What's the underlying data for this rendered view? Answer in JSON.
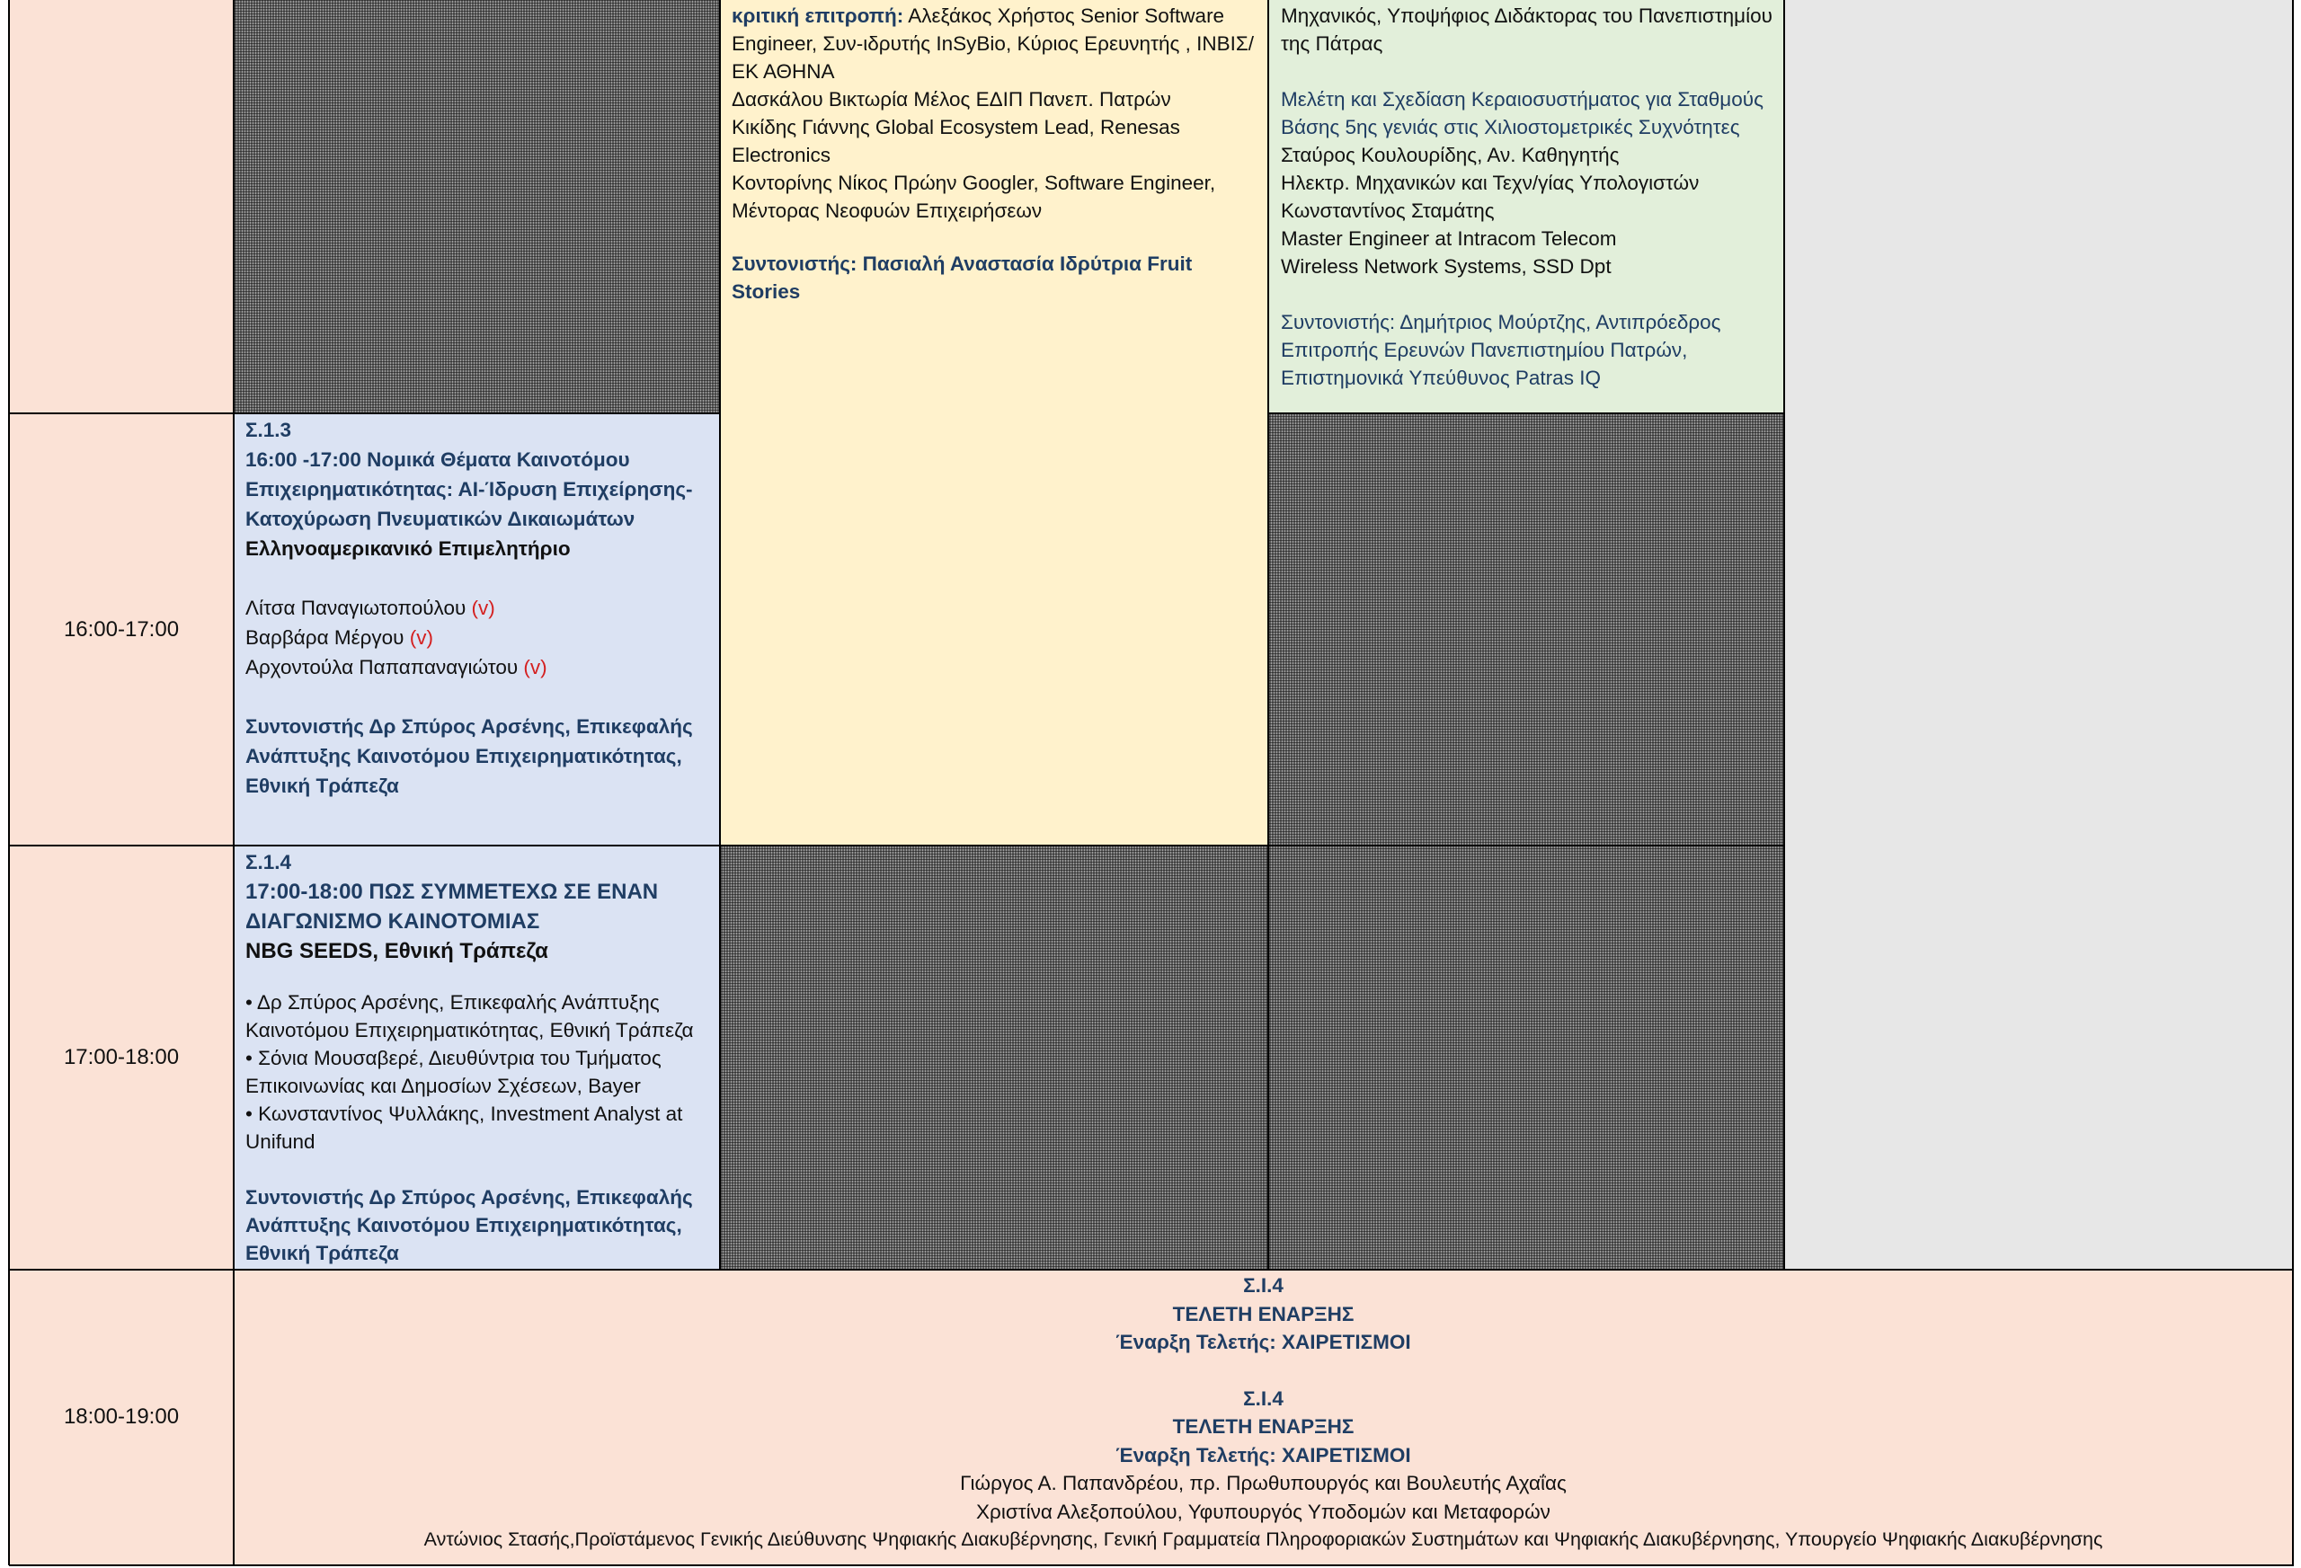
{
  "times": {
    "t1": "16:00-17:00",
    "t2": "17:00-18:00",
    "t3": "18:00-19:00"
  },
  "yellow_cell": {
    "committee_label": "κριτική επιτροπή:",
    "committee_first": " Αλεξάκος Χρήστος Senior Software Engineer, Συν-ιδρυτής InSyBio, Κύριος Ερευνητής , ΙΝΒΙΣ/ΕΚ ΑΘΗΝΑ",
    "member2": "Δασκάλου Βικτωρία Μέλος ΕΔΙΠ Πανεπ. Πατρών",
    "member3": "Κικίδης Γιάννης Global Ecosystem Lead, Renesas Electronics",
    "member4": "Κοντορίνης Νίκος Πρώην Googler, Software Engineer, Μέντορας Νεοφυών Επιχειρήσεων",
    "coordinator": "Συντονιστής: Πασιαλή Αναστασία Ιδρύτρια Fruit Stories"
  },
  "green_cell": {
    "line1": "Μηχανικός, Υποψήφιος Διδάκτορας του Πανεπιστημίου της Πάτρας",
    "talk_title": "Μελέτη και Σχεδίαση Κεραιοσυστήματος για Σταθμούς Βάσης 5ης γενιάς στις Χιλιοστομετρικές Συχνότητες",
    "speaker1": "Σταύρος Κουλουρίδης, Αν. Καθηγητής",
    "speaker1_aff": "Ηλεκτρ. Μηχανικών και Τεχν/γίας Υπολογιστών",
    "speaker2": "Κωνσταντίνος Σταμάτης",
    "speaker2_role": "Master Engineer at Intracom Telecom",
    "speaker2_aff": "Wireless Network Systems, SSD Dpt",
    "coordinator": "Συντονιστής: Δημήτριος Μούρτζης,  Αντιπρόεδρος Επιτροπής Ερευνών Πανεπιστημίου Πατρών, Επιστημονικά Υπεύθυνος Patras IQ"
  },
  "s13": {
    "code": "Σ.1.3",
    "title": "16:00 -17:00 Νομικά Θέματα Καινοτόμου Επιχειρηματικότητας: ΑΙ-Ίδρυση Επιχείρησης- Κατοχύρωση Πνευματικών Δικαιωμάτων",
    "organizer": "Ελληνοαμερικανικό Επιμελητήριο",
    "speakers": [
      {
        "name": "Λίτσα Παναγιωτοπούλου ",
        "mark": "(v)"
      },
      {
        "name": "Βαρβάρα Μέργου ",
        "mark": "(v)"
      },
      {
        "name": "Αρχοντούλα Παπαπαναγιώτου ",
        "mark": "(v)"
      }
    ],
    "coordinator": "Συντονιστής Δρ Σπύρος Αρσένης, Επικεφαλής Ανάπτυξης Καινοτόμου Επιχειρηματικότητας, Εθνική Τράπεζα"
  },
  "s14": {
    "code": "Σ.1.4",
    "title": "17:00-18:00 ΠΩΣ ΣΥΜΜΕΤΕΧΩ ΣΕ ΕΝΑΝ ΔΙΑΓΩΝΙΣΜΟ ΚΑΙΝΟΤΟΜΙΑΣ",
    "organizer": "NBG SEEDS, Εθνική Τράπεζα",
    "speakers": [
      "• Δρ Σπύρος Αρσένης, Επικεφαλής Ανάπτυξης Καινοτόμου Επιχειρηματικότητας, Εθνική Τράπεζα",
      "• Σόνια Μουσαβερέ, Διευθύντρια του Τμήματος Επικοινωνίας και Δημοσίων Σχέσεων, Bayer",
      "• Κωνσταντίνος Ψυλλάκης, Investment Analyst at Unifund"
    ],
    "coordinator": "Συντονιστής Δρ Σπύρος Αρσένης, Επικεφαλής Ανάπτυξης Καινοτόμου Επιχειρηματικότητας, Εθνική Τράπεζα"
  },
  "ceremony": {
    "code1": "Σ.Ι.4",
    "title1": "ΤΕΛΕΤΗ ΕΝΑΡΞΗΣ",
    "sub1": "Έναρξη Τελετής: ΧΑΙΡΕΤΙΣΜΟΙ",
    "code2": "Σ.Ι.4",
    "title2": "ΤΕΛΕΤΗ ΕΝΑΡΞΗΣ",
    "sub2": "Έναρξη Τελετής: ΧΑΙΡΕΤΙΣΜΟΙ",
    "guests": [
      "Γιώργος Α. Παπανδρέου, πρ. Πρωθυπουργός και Βουλευτής Αχαΐας",
      "Χριστίνα Αλεξοπούλου, Υφυπουργός Υποδομών και Μεταφορών",
      "Αντώνιος Στασής,Προϊστάμενος Γενικής Διεύθυνσης Ψηφιακής Διακυβέρνησης, Γενική Γραμματεία Πληροφοριακών Συστημάτων και Ψηφιακής Διακυβέρνησης, Υπουργείο Ψηφιακής Διακυβέρνησης"
    ]
  },
  "colors": {
    "time_bg": "#fbe2d6",
    "session_blue_bg": "#dbe3f3",
    "yellow_bg": "#fff2cc",
    "green_bg": "#e2efda",
    "grey_bg": "#e7e7e7",
    "text_blue": "#1f3d63"
  }
}
